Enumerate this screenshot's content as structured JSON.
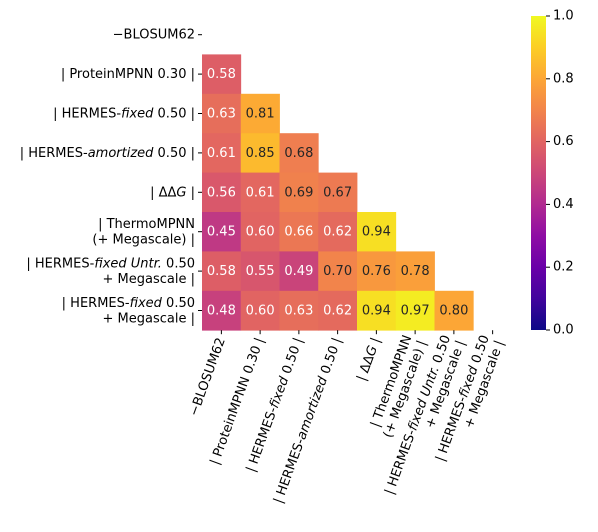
{
  "chart_data": {
    "type": "heatmap",
    "colormap": "plasma",
    "vmin": 0.0,
    "vmax": 1.0,
    "mask": "upper-triangle-including-diagonal",
    "row_labels": [
      {
        "parts": [
          {
            "t": "−BLOSUM62"
          }
        ]
      },
      {
        "parts": [
          {
            "t": "| ProteinMPNN 0.30 |"
          }
        ]
      },
      {
        "parts": [
          {
            "t": "| HERMES-"
          },
          {
            "t": "fixed",
            "i": true
          },
          {
            "t": " 0.50 |"
          }
        ]
      },
      {
        "parts": [
          {
            "t": "| HERMES-"
          },
          {
            "t": "amortized",
            "i": true
          },
          {
            "t": " 0.50 |"
          }
        ]
      },
      {
        "parts": [
          {
            "t": "| ΔΔ"
          },
          {
            "t": "G",
            "i": true
          },
          {
            "t": " |"
          }
        ]
      },
      {
        "lines": [
          [
            {
              "t": "| ThermoMPNN"
            }
          ],
          [
            {
              "t": "(+ Megascale) |"
            }
          ]
        ]
      },
      {
        "lines": [
          [
            {
              "t": "| HERMES-"
            },
            {
              "t": "fixed Untr.",
              "i": true
            },
            {
              "t": "  0.50"
            }
          ],
          [
            {
              "t": "+ Megascale |"
            }
          ]
        ]
      },
      {
        "lines": [
          [
            {
              "t": "| HERMES-"
            },
            {
              "t": "fixed",
              "i": true
            },
            {
              "t": " 0.50"
            }
          ],
          [
            {
              "t": "+ Megascale |"
            }
          ]
        ]
      }
    ],
    "col_labels": [
      {
        "parts": [
          {
            "t": "−BLOSUM62"
          }
        ]
      },
      {
        "parts": [
          {
            "t": "| ProteinMPNN 0.30 |"
          }
        ]
      },
      {
        "parts": [
          {
            "t": "| HERMES-"
          },
          {
            "t": "fixed",
            "i": true
          },
          {
            "t": " 0.50 |"
          }
        ]
      },
      {
        "parts": [
          {
            "t": "| HERMES-"
          },
          {
            "t": "amortized",
            "i": true
          },
          {
            "t": " 0.50 |"
          }
        ]
      },
      {
        "parts": [
          {
            "t": "| ΔΔ"
          },
          {
            "t": "G",
            "i": true
          },
          {
            "t": " |"
          }
        ]
      },
      {
        "lines": [
          [
            {
              "t": "| ThermoMPNN"
            }
          ],
          [
            {
              "t": "(+ Megascale) |"
            }
          ]
        ]
      },
      {
        "lines": [
          [
            {
              "t": "| HERMES-"
            },
            {
              "t": "fixed Untr.",
              "i": true
            },
            {
              "t": "  0.50"
            }
          ],
          [
            {
              "t": "+ Megascale |"
            }
          ]
        ]
      },
      {
        "lines": [
          [
            {
              "t": "| HERMES-"
            },
            {
              "t": "fixed",
              "i": true
            },
            {
              "t": " 0.50"
            }
          ],
          [
            {
              "t": "+ Megascale |"
            }
          ]
        ]
      }
    ],
    "values": [
      [
        null,
        null,
        null,
        null,
        null,
        null,
        null,
        null
      ],
      [
        0.58,
        null,
        null,
        null,
        null,
        null,
        null,
        null
      ],
      [
        0.63,
        0.81,
        null,
        null,
        null,
        null,
        null,
        null
      ],
      [
        0.61,
        0.85,
        0.68,
        null,
        null,
        null,
        null,
        null
      ],
      [
        0.56,
        0.61,
        0.69,
        0.67,
        null,
        null,
        null,
        null
      ],
      [
        0.45,
        0.6,
        0.66,
        0.62,
        0.94,
        null,
        null,
        null
      ],
      [
        0.58,
        0.55,
        0.49,
        0.7,
        0.76,
        0.78,
        null,
        null
      ],
      [
        0.48,
        0.6,
        0.63,
        0.62,
        0.94,
        0.97,
        0.8,
        null
      ]
    ],
    "value_labels": [
      [
        null,
        null,
        null,
        null,
        null,
        null,
        null,
        null
      ],
      [
        "0.58",
        null,
        null,
        null,
        null,
        null,
        null,
        null
      ],
      [
        "0.63",
        "0.81",
        null,
        null,
        null,
        null,
        null,
        null
      ],
      [
        "0.61",
        "0.85",
        "0.68",
        null,
        null,
        null,
        null,
        null
      ],
      [
        "0.56",
        "0.61",
        "0.69",
        "0.67",
        null,
        null,
        null,
        null
      ],
      [
        "0.45",
        "0.60",
        "0.66",
        "0.62",
        "0.94",
        null,
        null,
        null
      ],
      [
        "0.58",
        "0.55",
        "0.49",
        "0.70",
        "0.76",
        "0.78",
        null,
        null
      ],
      [
        "0.48",
        "0.60",
        "0.63",
        "0.62",
        "0.94",
        "0.97",
        "0.80",
        null
      ]
    ],
    "colorbar": {
      "ticks": [
        0.0,
        0.2,
        0.4,
        0.6,
        0.8,
        1.0
      ],
      "tick_labels": [
        "0.0",
        "0.2",
        "0.4",
        "0.6",
        "0.8",
        "1.0"
      ]
    },
    "text_colors": {
      "dark_bg": "#ffffff",
      "light_bg": "#262626"
    }
  }
}
